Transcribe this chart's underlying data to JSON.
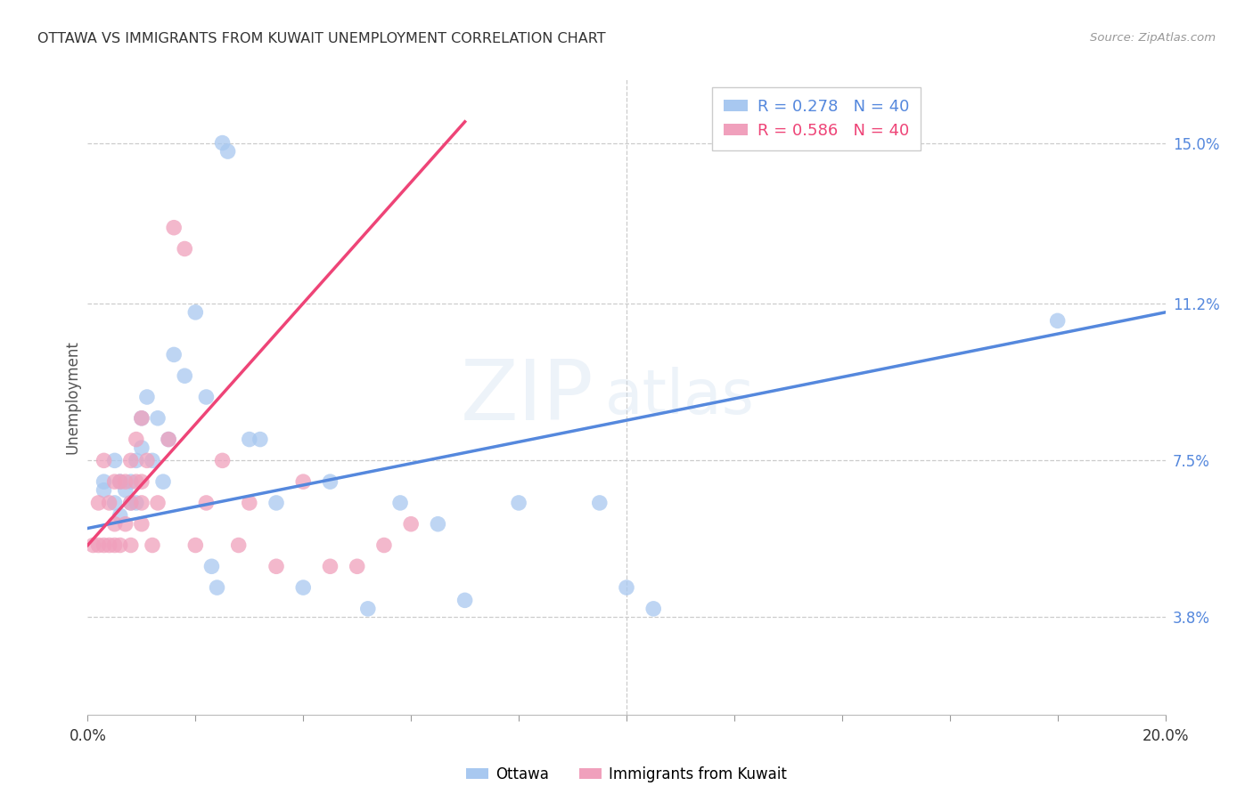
{
  "title": "OTTAWA VS IMMIGRANTS FROM KUWAIT UNEMPLOYMENT CORRELATION CHART",
  "source": "Source: ZipAtlas.com",
  "ylabel": "Unemployment",
  "yticks": [
    3.8,
    7.5,
    11.2,
    15.0
  ],
  "ytick_labels": [
    "3.8%",
    "7.5%",
    "11.2%",
    "15.0%"
  ],
  "xmin": 0.0,
  "xmax": 20.0,
  "ymin": 1.5,
  "ymax": 16.5,
  "watermark_zip": "ZIP",
  "watermark_atlas": "atlas",
  "ottawa_color": "#a8c8f0",
  "kuwait_color": "#f0a0bc",
  "ottawa_line_color": "#5588dd",
  "kuwait_line_color": "#ee4477",
  "ottawa_scatter_x": [
    0.3,
    0.3,
    0.5,
    0.5,
    0.6,
    0.6,
    0.7,
    0.8,
    0.8,
    0.9,
    0.9,
    1.0,
    1.0,
    1.1,
    1.2,
    1.3,
    1.4,
    1.5,
    1.6,
    1.8,
    2.0,
    2.2,
    2.5,
    2.6,
    3.0,
    3.2,
    3.5,
    4.0,
    4.5,
    5.2,
    5.8,
    6.5,
    7.0,
    8.0,
    9.5,
    10.0,
    10.5,
    18.0,
    2.4,
    2.3
  ],
  "ottawa_scatter_y": [
    6.8,
    7.0,
    6.5,
    7.5,
    6.2,
    7.0,
    6.8,
    6.5,
    7.0,
    6.5,
    7.5,
    7.8,
    8.5,
    9.0,
    7.5,
    8.5,
    7.0,
    8.0,
    10.0,
    9.5,
    11.0,
    9.0,
    15.0,
    14.8,
    8.0,
    8.0,
    6.5,
    4.5,
    7.0,
    4.0,
    6.5,
    6.0,
    4.2,
    6.5,
    6.5,
    4.5,
    4.0,
    10.8,
    4.5,
    5.0
  ],
  "kuwait_scatter_x": [
    0.1,
    0.2,
    0.2,
    0.3,
    0.3,
    0.4,
    0.4,
    0.5,
    0.5,
    0.5,
    0.6,
    0.6,
    0.7,
    0.7,
    0.8,
    0.8,
    0.8,
    0.9,
    0.9,
    1.0,
    1.0,
    1.0,
    1.0,
    1.1,
    1.2,
    1.3,
    1.5,
    1.6,
    1.8,
    2.0,
    2.2,
    2.5,
    2.8,
    3.0,
    3.5,
    4.0,
    4.5,
    5.0,
    5.5,
    6.0
  ],
  "kuwait_scatter_y": [
    5.5,
    5.5,
    6.5,
    5.5,
    7.5,
    5.5,
    6.5,
    5.5,
    6.0,
    7.0,
    5.5,
    7.0,
    6.0,
    7.0,
    5.5,
    6.5,
    7.5,
    7.0,
    8.0,
    6.0,
    6.5,
    7.0,
    8.5,
    7.5,
    5.5,
    6.5,
    8.0,
    13.0,
    12.5,
    5.5,
    6.5,
    7.5,
    5.5,
    6.5,
    5.0,
    7.0,
    5.0,
    5.0,
    5.5,
    6.0
  ],
  "ottawa_trend_x": [
    0.0,
    20.0
  ],
  "ottawa_trend_y": [
    5.9,
    11.0
  ],
  "kuwait_trend_x": [
    0.0,
    7.0
  ],
  "kuwait_trend_y": [
    5.5,
    15.5
  ],
  "xtick_positions": [
    0.0,
    2.0,
    4.0,
    6.0,
    8.0,
    10.0,
    12.0,
    14.0,
    16.0,
    18.0,
    20.0
  ],
  "vertical_line_x": 10.0,
  "legend_r_ottawa": "R = 0.278",
  "legend_n_ottawa": "N = 40",
  "legend_r_kuwait": "R = 0.586",
  "legend_n_kuwait": "N = 40"
}
